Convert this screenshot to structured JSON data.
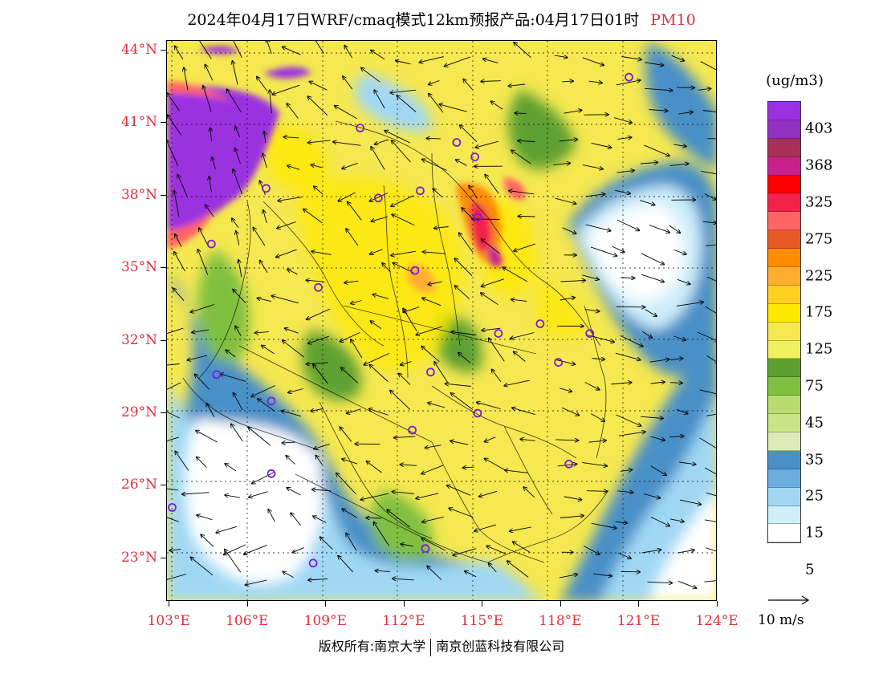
{
  "title": {
    "main": "2024年04月17日WRF/cmaq模式12km预报产品:04月17日01时",
    "pollutant": "PM10"
  },
  "map": {
    "lat_labels": [
      {
        "deg": 44,
        "text": "44°N"
      },
      {
        "deg": 41,
        "text": "41°N"
      },
      {
        "deg": 38,
        "text": "38°N"
      },
      {
        "deg": 35,
        "text": "35°N"
      },
      {
        "deg": 32,
        "text": "32°N"
      },
      {
        "deg": 29,
        "text": "29°N"
      },
      {
        "deg": 26,
        "text": "26°N"
      },
      {
        "deg": 23,
        "text": "23°N"
      }
    ],
    "lon_labels": [
      {
        "deg": 103,
        "text": "103°E"
      },
      {
        "deg": 106,
        "text": "106°E"
      },
      {
        "deg": 109,
        "text": "109°E"
      },
      {
        "deg": 112,
        "text": "112°E"
      },
      {
        "deg": 115,
        "text": "115°E"
      },
      {
        "deg": 118,
        "text": "118°E"
      },
      {
        "deg": 121,
        "text": "121°E"
      },
      {
        "deg": 124,
        "text": "124°E"
      }
    ],
    "lon_range": [
      102.9,
      124.0
    ],
    "lat_range": [
      21.2,
      44.4
    ],
    "city_markers": [
      {
        "lon": 120.6,
        "lat": 42.9
      },
      {
        "lon": 110.3,
        "lat": 40.8
      },
      {
        "lon": 114.0,
        "lat": 40.2
      },
      {
        "lon": 114.7,
        "lat": 39.6
      },
      {
        "lon": 106.7,
        "lat": 38.3
      },
      {
        "lon": 111.0,
        "lat": 37.9
      },
      {
        "lon": 112.6,
        "lat": 38.2
      },
      {
        "lon": 114.8,
        "lat": 37.1
      },
      {
        "lon": 104.6,
        "lat": 36.0
      },
      {
        "lon": 112.4,
        "lat": 34.9
      },
      {
        "lon": 108.7,
        "lat": 34.2
      },
      {
        "lon": 117.2,
        "lat": 32.7
      },
      {
        "lon": 115.6,
        "lat": 32.3
      },
      {
        "lon": 119.1,
        "lat": 32.3
      },
      {
        "lon": 117.9,
        "lat": 31.1
      },
      {
        "lon": 104.8,
        "lat": 30.6
      },
      {
        "lon": 113.0,
        "lat": 30.7
      },
      {
        "lon": 106.9,
        "lat": 29.5
      },
      {
        "lon": 114.8,
        "lat": 29.0
      },
      {
        "lon": 112.3,
        "lat": 28.3
      },
      {
        "lon": 118.3,
        "lat": 26.9
      },
      {
        "lon": 106.9,
        "lat": 26.5
      },
      {
        "lon": 103.1,
        "lat": 25.1
      },
      {
        "lon": 112.8,
        "lat": 23.4
      },
      {
        "lon": 108.5,
        "lat": 22.8
      }
    ]
  },
  "legend": {
    "unit": "(ug/m3)",
    "colors": [
      "#9b30e0",
      "#8f30c0",
      "#a83058",
      "#c8208a",
      "#ff0000",
      "#f2224b",
      "#ff6464",
      "#e85a25",
      "#ff8c00",
      "#ffae30",
      "#ffd020",
      "#ffe800",
      "#f5e850",
      "#f0f060",
      "#5ea030",
      "#80c040",
      "#b8dc70",
      "#c8e484",
      "#dfeab8",
      "#4a90c8",
      "#6aaede",
      "#a0d8f4",
      "#cdeefa",
      "#ffffff"
    ],
    "labels": [
      {
        "index": 1,
        "text": "403"
      },
      {
        "index": 3,
        "text": "368"
      },
      {
        "index": 5,
        "text": "325"
      },
      {
        "index": 7,
        "text": "275"
      },
      {
        "index": 9,
        "text": "225"
      },
      {
        "index": 11,
        "text": "175"
      },
      {
        "index": 13,
        "text": "125"
      },
      {
        "index": 15,
        "text": "75"
      },
      {
        "index": 17,
        "text": "45"
      },
      {
        "index": 19,
        "text": "35"
      },
      {
        "index": 21,
        "text": "25"
      },
      {
        "index": 23,
        "text": "15"
      },
      {
        "index": 25,
        "text": "5"
      }
    ]
  },
  "wind_vector": {
    "label": "10 m/s"
  },
  "copyright": {
    "owner1": "版权所有:南京大学",
    "owner2": "南京创蓝科技有限公司"
  }
}
